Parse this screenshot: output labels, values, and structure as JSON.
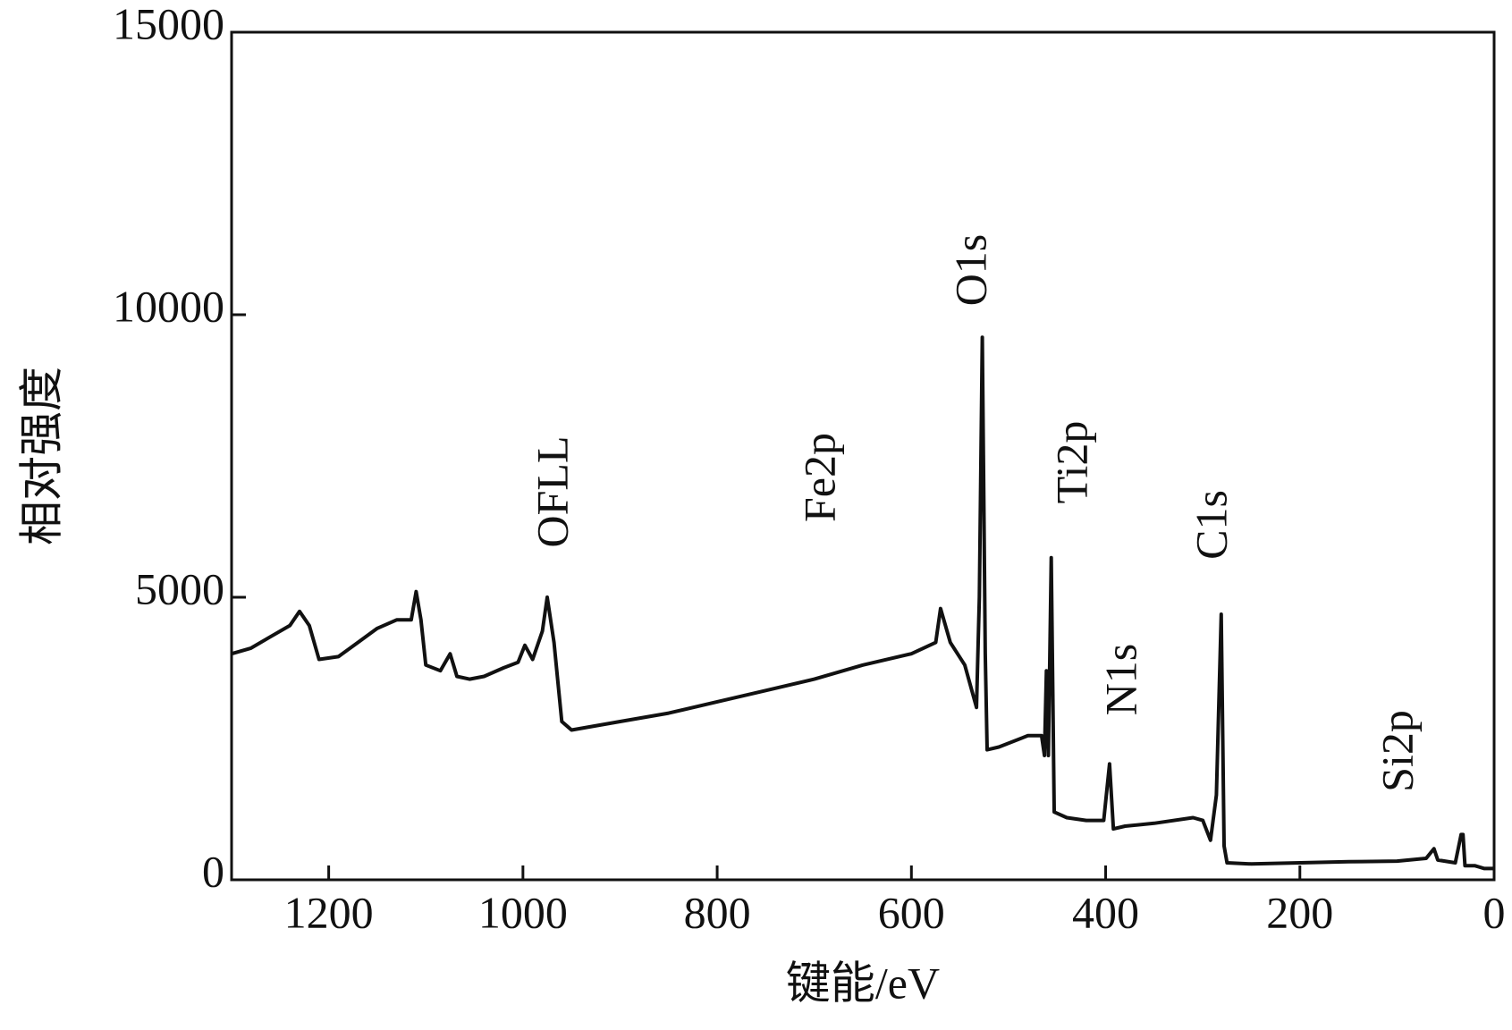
{
  "chart_data": {
    "type": "line",
    "x_label": "键能/eV",
    "y_label": "相对强度",
    "xlim": [
      1300,
      0
    ],
    "ylim": [
      0,
      15000
    ],
    "xticks": [
      1200,
      1000,
      800,
      600,
      400,
      200,
      0
    ],
    "yticks": [
      0,
      5000,
      10000,
      15000
    ],
    "annotations": [
      "OFLL",
      "Fe2p",
      "O1s",
      "Ti2p",
      "N1s",
      "C1s",
      "Si2p"
    ],
    "series": [
      {
        "color": "#111111",
        "x": [
          1300,
          1280,
          1260,
          1240,
          1230,
          1220,
          1210,
          1190,
          1170,
          1150,
          1130,
          1115,
          1110,
          1105,
          1100,
          1085,
          1075,
          1068,
          1055,
          1040,
          1020,
          1005,
          998,
          990,
          980,
          975,
          968,
          960,
          950,
          900,
          850,
          800,
          750,
          700,
          650,
          600,
          575,
          570,
          560,
          545,
          533,
          530,
          527,
          524,
          522,
          510,
          480,
          466,
          463,
          461,
          459,
          456,
          453,
          440,
          420,
          402,
          396,
          392,
          380,
          350,
          310,
          300,
          292,
          286,
          281,
          278,
          275,
          250,
          200,
          150,
          100,
          70,
          62,
          58,
          40,
          34,
          32,
          30,
          20,
          10,
          0
        ],
        "values": [
          4000,
          4100,
          4300,
          4500,
          4750,
          4500,
          3900,
          3950,
          4200,
          4450,
          4600,
          4600,
          5100,
          4600,
          3800,
          3700,
          4000,
          3600,
          3550,
          3600,
          3750,
          3850,
          4150,
          3900,
          4400,
          5000,
          4200,
          2800,
          2650,
          2800,
          2950,
          3150,
          3350,
          3550,
          3800,
          4000,
          4200,
          4800,
          4200,
          3800,
          3050,
          5000,
          9600,
          4000,
          2300,
          2350,
          2550,
          2550,
          2200,
          3700,
          2200,
          5700,
          1200,
          1100,
          1050,
          1050,
          2050,
          900,
          950,
          1000,
          1100,
          1050,
          700,
          1500,
          4700,
          600,
          300,
          280,
          300,
          320,
          330,
          380,
          550,
          350,
          300,
          800,
          800,
          250,
          250,
          200,
          200
        ]
      }
    ]
  }
}
